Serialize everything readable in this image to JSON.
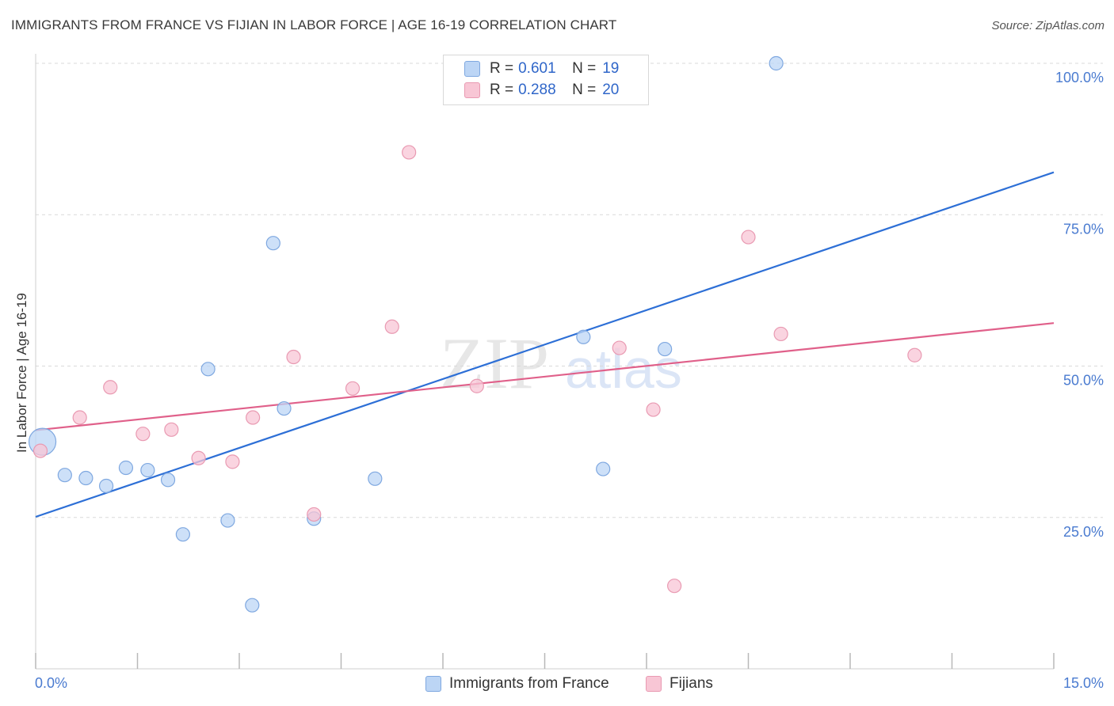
{
  "header": {
    "title": "IMMIGRANTS FROM FRANCE VS FIJIAN IN LABOR FORCE | AGE 16-19 CORRELATION CHART",
    "source": "Source: ZipAtlas.com"
  },
  "legend_top": {
    "rows": [
      {
        "r_label": "R =",
        "r_value": "0.601",
        "n_label": "N =",
        "n_value": "19"
      },
      {
        "r_label": "R =",
        "r_value": "0.288",
        "n_label": "N =",
        "n_value": "20"
      }
    ]
  },
  "legend_bottom": {
    "items": [
      "Immigrants from France",
      "Fijians"
    ]
  },
  "watermark": {
    "zip": "ZIP",
    "atlas": "atlas"
  },
  "colors": {
    "blue_fill": "#bcd5f5",
    "blue_stroke": "#7fa8e0",
    "blue_line": "#2d6fd6",
    "pink_fill": "#f8c6d5",
    "pink_stroke": "#e99ab2",
    "pink_line": "#e0608a",
    "tick_label": "#4a7bd0",
    "grid": "#d9d9d9"
  },
  "chart_data": {
    "type": "scatter",
    "title": "IMMIGRANTS FROM FRANCE VS FIJIAN IN LABOR FORCE | AGE 16-19 CORRELATION CHART",
    "xlabel": "",
    "ylabel": "In Labor Force | Age 16-19",
    "xlim": [
      0,
      15
    ],
    "ylim": [
      0,
      100
    ],
    "x_tick_labels": [
      "0.0%",
      "15.0%"
    ],
    "y_ticks": [
      25,
      50,
      75,
      100
    ],
    "y_tick_labels": [
      "25.0%",
      "50.0%",
      "75.0%",
      "100.0%"
    ],
    "grid": "horizontal dashed",
    "legend_position": "top-center",
    "series": [
      {
        "name": "Immigrants from France",
        "color": "#7fa8e0",
        "r": 0.601,
        "n": 19,
        "points": [
          {
            "x": 0.1,
            "y": 37.5,
            "big": true
          },
          {
            "x": 0.43,
            "y": 32.0
          },
          {
            "x": 0.74,
            "y": 31.5
          },
          {
            "x": 1.04,
            "y": 30.2
          },
          {
            "x": 1.33,
            "y": 33.2
          },
          {
            "x": 1.65,
            "y": 32.8
          },
          {
            "x": 1.95,
            "y": 31.2
          },
          {
            "x": 2.17,
            "y": 22.2
          },
          {
            "x": 2.54,
            "y": 49.5
          },
          {
            "x": 2.83,
            "y": 24.5
          },
          {
            "x": 3.19,
            "y": 10.5
          },
          {
            "x": 3.5,
            "y": 70.3
          },
          {
            "x": 3.66,
            "y": 43.0
          },
          {
            "x": 4.1,
            "y": 24.8
          },
          {
            "x": 5.0,
            "y": 31.4
          },
          {
            "x": 8.07,
            "y": 54.8
          },
          {
            "x": 8.36,
            "y": 33.0
          },
          {
            "x": 9.27,
            "y": 52.8
          },
          {
            "x": 10.91,
            "y": 100.0
          }
        ],
        "trend": {
          "x": [
            0,
            15
          ],
          "y": [
            25.1,
            82.0
          ]
        }
      },
      {
        "name": "Fijians",
        "color": "#e99ab2",
        "r": 0.288,
        "n": 20,
        "points": [
          {
            "x": 0.07,
            "y": 36.0
          },
          {
            "x": 0.65,
            "y": 41.5
          },
          {
            "x": 1.1,
            "y": 46.5
          },
          {
            "x": 1.58,
            "y": 38.8
          },
          {
            "x": 2.0,
            "y": 39.5
          },
          {
            "x": 2.4,
            "y": 34.8
          },
          {
            "x": 2.9,
            "y": 34.2
          },
          {
            "x": 3.2,
            "y": 41.5
          },
          {
            "x": 3.8,
            "y": 51.5
          },
          {
            "x": 4.1,
            "y": 25.5
          },
          {
            "x": 4.67,
            "y": 46.3
          },
          {
            "x": 5.25,
            "y": 56.5
          },
          {
            "x": 5.5,
            "y": 85.3
          },
          {
            "x": 6.5,
            "y": 46.7
          },
          {
            "x": 8.6,
            "y": 53.0
          },
          {
            "x": 9.1,
            "y": 42.8
          },
          {
            "x": 9.41,
            "y": 13.7
          },
          {
            "x": 10.5,
            "y": 71.3
          },
          {
            "x": 10.98,
            "y": 55.3
          },
          {
            "x": 12.95,
            "y": 51.8
          }
        ],
        "trend": {
          "x": [
            0,
            15
          ],
          "y": [
            39.4,
            57.1
          ]
        }
      }
    ]
  }
}
